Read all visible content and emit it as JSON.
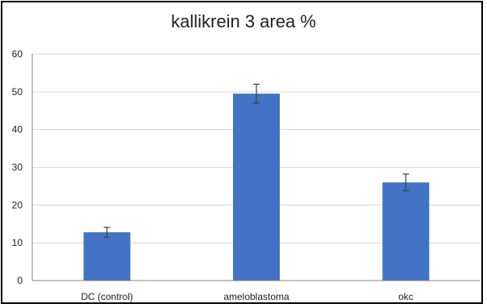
{
  "chart_data": {
    "type": "bar",
    "title": "kallikrein 3 area %",
    "categories": [
      "DC (control)",
      "ameloblastoma",
      "okc"
    ],
    "values": [
      12.8,
      49.5,
      26.0
    ],
    "error": [
      1.3,
      2.5,
      2.2
    ],
    "ylim": [
      0,
      60
    ],
    "yticks": [
      0,
      10,
      20,
      30,
      40,
      50,
      60
    ],
    "xlabel": "",
    "ylabel": "",
    "grid": true,
    "legend": "none",
    "colors": {
      "bar": "#4472C4",
      "grid": "#D9D9D9",
      "axis": "#808080",
      "error": "#404040"
    }
  }
}
